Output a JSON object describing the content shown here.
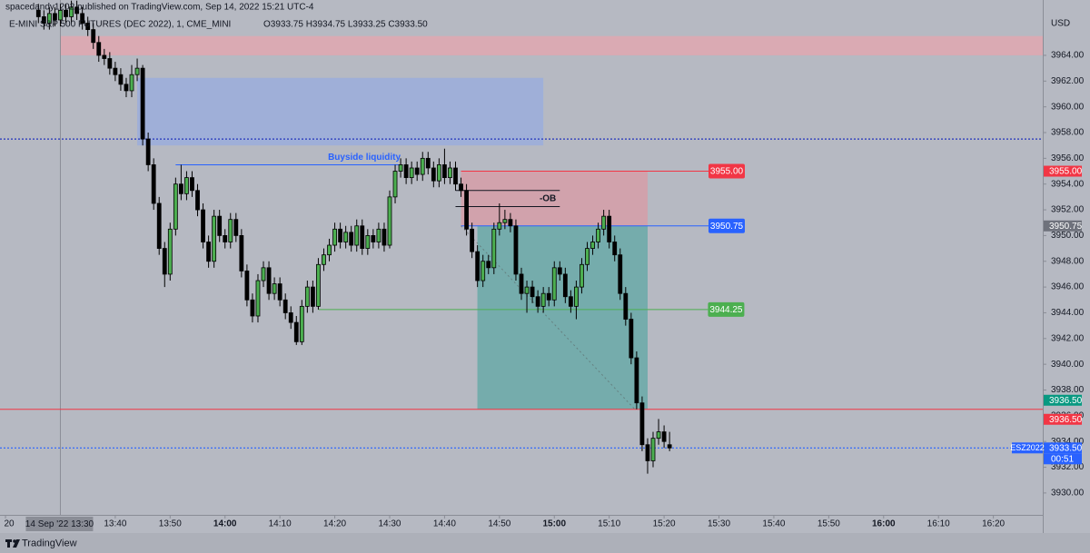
{
  "header": {
    "published": "spacedandy1202 published on TradingView.com, Sep 14, 2022 15:21 UTC-4",
    "symbol": "E-MINI S&P 500 FUTURES (DEC 2022), 1, CME_MINI",
    "ohlc": "O3933.75  H3934.75  L3933.25  C3933.50"
  },
  "chart_data": {
    "type": "candlestick",
    "currency": "USD",
    "x": [
      "13:26",
      "13:27",
      "13:28",
      "13:29",
      "13:30",
      "13:31",
      "13:32",
      "13:33",
      "13:34",
      "13:35",
      "13:36",
      "13:37",
      "13:38",
      "13:39",
      "13:40",
      "13:41",
      "13:42",
      "13:43",
      "13:44",
      "13:45",
      "13:46",
      "13:47",
      "13:48",
      "13:49",
      "13:50",
      "13:51",
      "13:52",
      "13:53",
      "13:54",
      "13:55",
      "13:56",
      "13:57",
      "13:58",
      "13:59",
      "14:00",
      "14:01",
      "14:02",
      "14:03",
      "14:04",
      "14:05",
      "14:06",
      "14:07",
      "14:08",
      "14:09",
      "14:10",
      "14:11",
      "14:12",
      "14:13",
      "14:14",
      "14:15",
      "14:16",
      "14:17",
      "14:18",
      "14:19",
      "14:20",
      "14:21",
      "14:22",
      "14:23",
      "14:24",
      "14:25",
      "14:26",
      "14:27",
      "14:28",
      "14:29",
      "14:30",
      "14:31",
      "14:32",
      "14:33",
      "14:34",
      "14:35",
      "14:36",
      "14:37",
      "14:38",
      "14:39",
      "14:40",
      "14:41",
      "14:42",
      "14:43",
      "14:44",
      "14:45",
      "14:46",
      "14:47",
      "14:48",
      "14:49",
      "14:50",
      "14:51",
      "14:52",
      "14:53",
      "14:54",
      "14:55",
      "14:56",
      "14:57",
      "14:58",
      "14:59",
      "15:00",
      "15:01",
      "15:02",
      "15:03",
      "15:04",
      "15:05",
      "15:06",
      "15:07",
      "15:08",
      "15:09",
      "15:10",
      "15:11",
      "15:12",
      "15:13",
      "15:14",
      "15:15",
      "15:16",
      "15:17",
      "15:18",
      "15:19",
      "15:20",
      "15:21"
    ],
    "open": [
      3967.5,
      3967.0,
      3966.5,
      3967.25,
      3966.75,
      3967.5,
      3967.0,
      3967.75,
      3967.25,
      3966.5,
      3966.0,
      3965.0,
      3964.0,
      3963.75,
      3963.0,
      3962.5,
      3961.75,
      3961.25,
      3962.5,
      3963.0,
      3957.5,
      3955.5,
      3952.5,
      3949.0,
      3947.0,
      3950.5,
      3954.0,
      3953.25,
      3954.5,
      3953.5,
      3952.0,
      3949.5,
      3948.0,
      3951.5,
      3950.0,
      3949.5,
      3951.25,
      3950.0,
      3947.25,
      3945.0,
      3943.75,
      3946.5,
      3947.5,
      3945.5,
      3946.25,
      3945.0,
      3944.0,
      3943.25,
      3941.75,
      3944.5,
      3946.0,
      3944.5,
      3947.75,
      3948.5,
      3949.25,
      3950.5,
      3949.5,
      3950.25,
      3949.25,
      3950.75,
      3949.0,
      3950.0,
      3949.5,
      3950.5,
      3949.25,
      3953.0,
      3955.0,
      3955.5,
      3954.5,
      3955.25,
      3954.75,
      3956.0,
      3955.25,
      3954.25,
      3955.5,
      3954.5,
      3955.25,
      3954.0,
      3953.5,
      3950.5,
      3948.75,
      3946.5,
      3948.0,
      3947.5,
      3950.5,
      3951.0,
      3951.25,
      3950.75,
      3947.0,
      3945.5,
      3946.0,
      3945.25,
      3944.5,
      3945.5,
      3945.0,
      3947.5,
      3947.0,
      3945.25,
      3944.5,
      3946.0,
      3947.75,
      3949.0,
      3949.5,
      3950.5,
      3951.5,
      3949.5,
      3948.5,
      3945.5,
      3943.5,
      3940.5,
      3937.0,
      3933.75,
      3932.5,
      3934.25,
      3934.75,
      3933.75
    ],
    "high": [
      3968.0,
      3967.5,
      3967.75,
      3967.75,
      3968.0,
      3968.0,
      3968.25,
      3968.25,
      3967.75,
      3967.0,
      3966.5,
      3965.5,
      3964.5,
      3964.25,
      3963.5,
      3963.0,
      3962.25,
      3963.25,
      3963.75,
      3963.25,
      3958.0,
      3956.0,
      3953.0,
      3949.5,
      3951.0,
      3954.5,
      3955.5,
      3955.0,
      3955.0,
      3954.0,
      3952.5,
      3950.0,
      3952.0,
      3952.0,
      3950.5,
      3951.75,
      3951.75,
      3950.5,
      3947.75,
      3945.5,
      3947.0,
      3948.0,
      3948.0,
      3946.75,
      3946.75,
      3945.5,
      3944.5,
      3943.75,
      3945.0,
      3946.5,
      3946.5,
      3948.25,
      3949.0,
      3949.75,
      3951.0,
      3951.0,
      3950.75,
      3950.75,
      3951.25,
      3951.25,
      3950.5,
      3950.5,
      3951.0,
      3951.0,
      3953.5,
      3955.5,
      3956.0,
      3956.0,
      3955.75,
      3955.75,
      3956.5,
      3956.5,
      3955.75,
      3956.0,
      3956.75,
      3955.75,
      3955.75,
      3954.5,
      3954.0,
      3951.0,
      3949.25,
      3948.5,
      3948.5,
      3951.0,
      3952.5,
      3952.0,
      3951.75,
      3951.25,
      3947.5,
      3946.5,
      3946.5,
      3945.75,
      3946.0,
      3946.0,
      3948.0,
      3948.0,
      3947.5,
      3945.75,
      3946.5,
      3948.25,
      3949.5,
      3950.0,
      3951.0,
      3952.0,
      3952.0,
      3950.0,
      3949.0,
      3946.0,
      3944.0,
      3941.0,
      3937.5,
      3934.25,
      3934.75,
      3935.75,
      3935.25,
      3934.75
    ],
    "low": [
      3966.5,
      3966.0,
      3966.0,
      3966.25,
      3966.25,
      3966.5,
      3966.5,
      3966.75,
      3966.0,
      3965.5,
      3964.5,
      3963.5,
      3963.25,
      3962.5,
      3962.0,
      3961.25,
      3960.75,
      3960.75,
      3962.0,
      3957.0,
      3955.0,
      3952.0,
      3948.5,
      3946.0,
      3946.5,
      3950.0,
      3952.75,
      3952.75,
      3953.0,
      3951.5,
      3949.0,
      3947.5,
      3947.5,
      3949.5,
      3949.0,
      3949.0,
      3949.5,
      3946.75,
      3944.5,
      3943.25,
      3943.25,
      3946.0,
      3945.0,
      3945.0,
      3944.5,
      3943.5,
      3942.75,
      3941.5,
      3941.5,
      3944.0,
      3944.0,
      3944.25,
      3947.25,
      3948.0,
      3948.75,
      3949.0,
      3949.0,
      3948.75,
      3948.75,
      3948.5,
      3948.5,
      3949.0,
      3949.0,
      3948.75,
      3949.0,
      3952.5,
      3954.5,
      3954.0,
      3954.0,
      3954.25,
      3954.25,
      3954.75,
      3953.75,
      3953.75,
      3954.0,
      3954.0,
      3953.5,
      3953.0,
      3950.0,
      3948.25,
      3946.0,
      3946.0,
      3947.0,
      3947.0,
      3950.0,
      3950.5,
      3950.25,
      3946.5,
      3945.0,
      3944.0,
      3944.75,
      3944.0,
      3944.0,
      3944.5,
      3944.5,
      3946.5,
      3944.75,
      3944.0,
      3943.5,
      3945.5,
      3947.25,
      3948.5,
      3949.0,
      3950.0,
      3949.0,
      3948.0,
      3945.0,
      3943.0,
      3940.0,
      3936.5,
      3933.25,
      3931.5,
      3932.0,
      3933.75,
      3933.5,
      3933.25
    ],
    "close": [
      3967.0,
      3966.5,
      3967.25,
      3966.75,
      3967.5,
      3967.0,
      3967.75,
      3967.25,
      3966.5,
      3966.0,
      3965.0,
      3964.0,
      3963.75,
      3963.0,
      3962.5,
      3961.75,
      3961.25,
      3962.5,
      3963.0,
      3957.5,
      3955.5,
      3952.5,
      3949.0,
      3947.0,
      3950.5,
      3954.0,
      3953.25,
      3954.5,
      3953.5,
      3952.0,
      3949.5,
      3948.0,
      3951.5,
      3950.0,
      3949.5,
      3951.25,
      3950.0,
      3947.25,
      3945.0,
      3943.75,
      3946.5,
      3947.5,
      3945.5,
      3946.25,
      3945.0,
      3944.0,
      3943.25,
      3941.75,
      3944.5,
      3946.0,
      3944.5,
      3947.75,
      3948.5,
      3949.25,
      3950.5,
      3949.5,
      3950.25,
      3949.25,
      3950.75,
      3949.0,
      3950.0,
      3949.5,
      3950.5,
      3949.25,
      3953.0,
      3955.0,
      3955.5,
      3954.5,
      3955.25,
      3954.75,
      3956.0,
      3955.25,
      3954.25,
      3955.5,
      3954.5,
      3955.25,
      3954.0,
      3953.5,
      3950.5,
      3948.75,
      3946.5,
      3948.0,
      3947.5,
      3950.5,
      3951.0,
      3951.25,
      3950.75,
      3947.0,
      3945.5,
      3946.0,
      3945.25,
      3944.5,
      3945.5,
      3945.0,
      3947.5,
      3947.0,
      3945.25,
      3944.5,
      3946.0,
      3947.75,
      3949.0,
      3949.5,
      3950.5,
      3951.5,
      3949.5,
      3948.5,
      3945.5,
      3943.5,
      3940.5,
      3937.0,
      3933.75,
      3932.5,
      3934.25,
      3934.75,
      3934.0,
      3933.5
    ],
    "up_color": "#4caf50",
    "down_color": "#000000",
    "xlim": [
      "13:19",
      "16:29"
    ],
    "ylim": [
      3928.3,
      3968.3
    ],
    "yticks": [
      {
        "value": 3930,
        "label": "3930.00"
      },
      {
        "value": 3932,
        "label": "3932.00"
      },
      {
        "value": 3934,
        "label": "3934.00"
      },
      {
        "value": 3936,
        "label": "3936.00"
      },
      {
        "value": 3938,
        "label": "3938.00"
      },
      {
        "value": 3940,
        "label": "3940.00"
      },
      {
        "value": 3942,
        "label": "3942.00"
      },
      {
        "value": 3944,
        "label": "3944.00"
      },
      {
        "value": 3946,
        "label": "3946.00"
      },
      {
        "value": 3948,
        "label": "3948.00"
      },
      {
        "value": 3950,
        "label": "3950.00"
      },
      {
        "value": 3952,
        "label": "3952.00"
      },
      {
        "value": 3954,
        "label": "3954.00"
      },
      {
        "value": 3956,
        "label": "3956.00"
      },
      {
        "value": 3958,
        "label": "3958.00"
      },
      {
        "value": 3960,
        "label": "3960.00"
      },
      {
        "value": 3962,
        "label": "3962.00"
      },
      {
        "value": 3964,
        "label": "3964.00"
      }
    ],
    "xticks": [
      {
        "value": "13:20",
        "label": "20"
      },
      "13:40",
      "13:50",
      "14:00",
      "14:10",
      "14:20",
      "14:30",
      "14:40",
      "14:50",
      "15:00",
      "15:10",
      "15:20",
      "15:30",
      "15:40",
      "15:50",
      "16:00",
      "16:10",
      "16:20"
    ],
    "crosshair": {
      "x": "13:30",
      "label": "14 Sep '22 13:30"
    },
    "zones": [
      {
        "top": 3965.5,
        "bottom": 3964.0,
        "from": "13:30",
        "to": "16:29",
        "color": "#f2a0a8"
      },
      {
        "top": 3962.25,
        "bottom": 3957.0,
        "from": "13:44",
        "to": "14:58",
        "color": "#8fa8e6"
      }
    ],
    "levels": [
      {
        "value": 3957.5,
        "color": "#2233bb",
        "style": "dotted"
      },
      {
        "value": 3936.5,
        "color": "#f23645",
        "style": "solid"
      },
      {
        "value": 3933.5,
        "color": "#2962ff",
        "style": "dotted"
      }
    ],
    "lines": [
      {
        "value": 3955.5,
        "from": "13:51",
        "to": "14:32",
        "color": "#2962ff",
        "label": "Buyside liquidity"
      },
      {
        "value": 3944.25,
        "from": "14:17",
        "to": "15:28",
        "color": "#4caf50",
        "tag": "3944.25"
      }
    ],
    "ob": {
      "values": [
        3953.5,
        3952.25
      ],
      "from": "14:42",
      "to": "15:01",
      "label": "-OB"
    },
    "position": {
      "from": "14:43",
      "to": "15:17",
      "stop": 3955,
      "entry": 3950.75,
      "target": 3936.5,
      "stop_tag": "3955.00",
      "entry_tag": "3950.75"
    },
    "price_tags": [
      {
        "value": 3955,
        "label": "3955.00",
        "color": "#f23645"
      },
      {
        "value": 3950.75,
        "label": "3950.75",
        "color": "#6f727c"
      },
      {
        "value": 3936.5,
        "label": "3936.50",
        "color": "#089981"
      },
      {
        "value": 3936.5,
        "label": "3936.50",
        "color": "#f23645"
      },
      {
        "value": 3933.5,
        "label": "3933.50",
        "color": "#2962ff"
      }
    ],
    "countdown": "00:51",
    "symbol_tag": "ESZ2022"
  },
  "footer": {
    "brand": "TradingView"
  }
}
